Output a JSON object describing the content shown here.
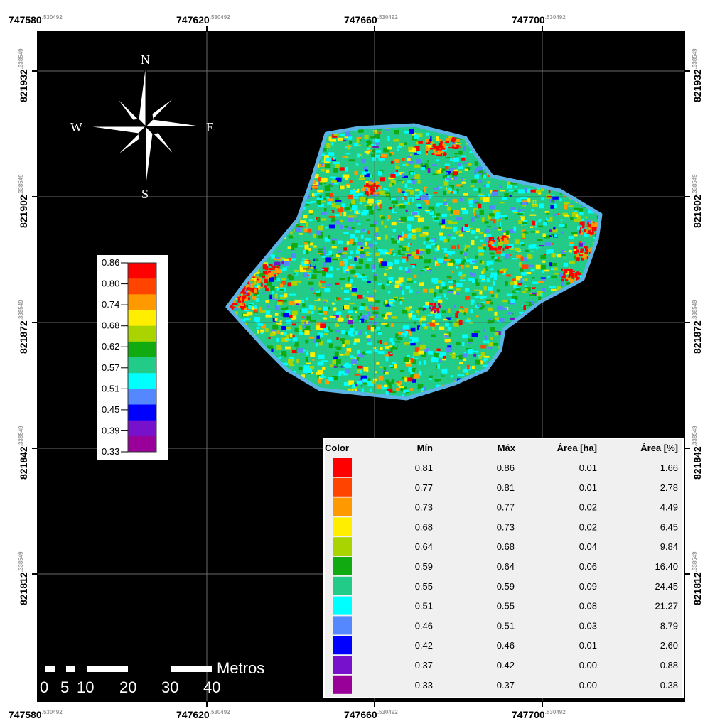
{
  "map": {
    "x_coords": [
      {
        "main": "747580",
        "sup": ".530492"
      },
      {
        "main": "747620",
        "sup": ".530492"
      },
      {
        "main": "747660",
        "sup": ".530492"
      },
      {
        "main": "747700",
        "sup": ".530492"
      }
    ],
    "y_coords": [
      {
        "main": "821932",
        "sup": ".338549"
      },
      {
        "main": "821902",
        "sup": ".338549"
      },
      {
        "main": "821872",
        "sup": ".338549"
      },
      {
        "main": "821842",
        "sup": ".338549"
      },
      {
        "main": "821812",
        "sup": ".338549"
      }
    ],
    "background_color": "#000000",
    "boundary_color": "#5ab4e6"
  },
  "compass": {
    "n": "N",
    "s": "S",
    "e": "E",
    "w": "W"
  },
  "color_ramp": {
    "labels": [
      "0.86",
      "0.80",
      "0.74",
      "0.68",
      "0.62",
      "0.57",
      "0.51",
      "0.45",
      "0.39",
      "0.33"
    ],
    "colors": [
      "#ff0000",
      "#ff4400",
      "#ff9900",
      "#ffee00",
      "#aad400",
      "#11aa11",
      "#22cc88",
      "#00ffff",
      "#5588ff",
      "#0000ff",
      "#7711cc",
      "#990099"
    ]
  },
  "table": {
    "headers": [
      "Color",
      "Mín",
      "Máx",
      "Área [ha]",
      "Área [%]"
    ],
    "rows": [
      {
        "color": "#ff0000",
        "min": "0.81",
        "max": "0.86",
        "ha": "0.01",
        "pct": "1.66"
      },
      {
        "color": "#ff4400",
        "min": "0.77",
        "max": "0.81",
        "ha": "0.01",
        "pct": "2.78"
      },
      {
        "color": "#ff9900",
        "min": "0.73",
        "max": "0.77",
        "ha": "0.02",
        "pct": "4.49"
      },
      {
        "color": "#ffee00",
        "min": "0.68",
        "max": "0.73",
        "ha": "0.02",
        "pct": "6.45"
      },
      {
        "color": "#aad400",
        "min": "0.64",
        "max": "0.68",
        "ha": "0.04",
        "pct": "9.84"
      },
      {
        "color": "#11aa11",
        "min": "0.59",
        "max": "0.64",
        "ha": "0.06",
        "pct": "16.40"
      },
      {
        "color": "#22cc88",
        "min": "0.55",
        "max": "0.59",
        "ha": "0.09",
        "pct": "24.45"
      },
      {
        "color": "#00ffff",
        "min": "0.51",
        "max": "0.55",
        "ha": "0.08",
        "pct": "21.27"
      },
      {
        "color": "#5588ff",
        "min": "0.46",
        "max": "0.51",
        "ha": "0.03",
        "pct": "8.79"
      },
      {
        "color": "#0000ff",
        "min": "0.42",
        "max": "0.46",
        "ha": "0.01",
        "pct": "2.60"
      },
      {
        "color": "#7711cc",
        "min": "0.37",
        "max": "0.42",
        "ha": "0.00",
        "pct": "0.88"
      },
      {
        "color": "#990099",
        "min": "0.33",
        "max": "0.37",
        "ha": "0.00",
        "pct": "0.38"
      }
    ]
  },
  "scale_bar": {
    "unit": "Metros",
    "ticks": [
      "0",
      "5",
      "10",
      "20",
      "30",
      "40"
    ]
  }
}
